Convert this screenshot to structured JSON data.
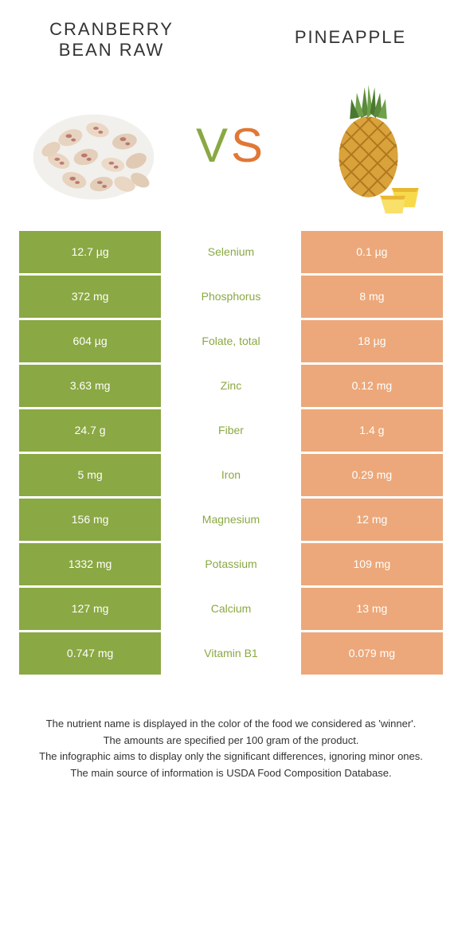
{
  "left_food": {
    "title": "CRANBERRY\nBEAN RAW"
  },
  "right_food": {
    "title": "PINEAPPLE"
  },
  "vs": {
    "v": "V",
    "s": "S"
  },
  "colors": {
    "left_intense": "#8aa843",
    "left_faded": "#b5c97e",
    "right_intense": "#e07836",
    "right_faded": "#eca87a",
    "nutrient_winner_left": "#8aa843",
    "nutrient_winner_right": "#e07836"
  },
  "nutrients": [
    {
      "name": "Selenium",
      "left_val": "12.7 µg",
      "right_val": "0.1 µg",
      "winner": "left"
    },
    {
      "name": "Phosphorus",
      "left_val": "372 mg",
      "right_val": "8 mg",
      "winner": "left"
    },
    {
      "name": "Folate, total",
      "left_val": "604 µg",
      "right_val": "18 µg",
      "winner": "left"
    },
    {
      "name": "Zinc",
      "left_val": "3.63 mg",
      "right_val": "0.12 mg",
      "winner": "left"
    },
    {
      "name": "Fiber",
      "left_val": "24.7 g",
      "right_val": "1.4 g",
      "winner": "left"
    },
    {
      "name": "Iron",
      "left_val": "5 mg",
      "right_val": "0.29 mg",
      "winner": "left"
    },
    {
      "name": "Magnesium",
      "left_val": "156 mg",
      "right_val": "12 mg",
      "winner": "left"
    },
    {
      "name": "Potassium",
      "left_val": "1332 mg",
      "right_val": "109 mg",
      "winner": "left"
    },
    {
      "name": "Calcium",
      "left_val": "127 mg",
      "right_val": "13 mg",
      "winner": "left"
    },
    {
      "name": "Vitamin B1",
      "left_val": "0.747 mg",
      "right_val": "0.079 mg",
      "winner": "left"
    }
  ],
  "footnotes": [
    "The nutrient name is displayed in the color of the food we considered as 'winner'.",
    "The amounts are specified per 100 gram of the product.",
    "The infographic aims to display only the significant differences, ignoring minor ones.",
    "The main source of information is USDA Food Composition Database."
  ]
}
